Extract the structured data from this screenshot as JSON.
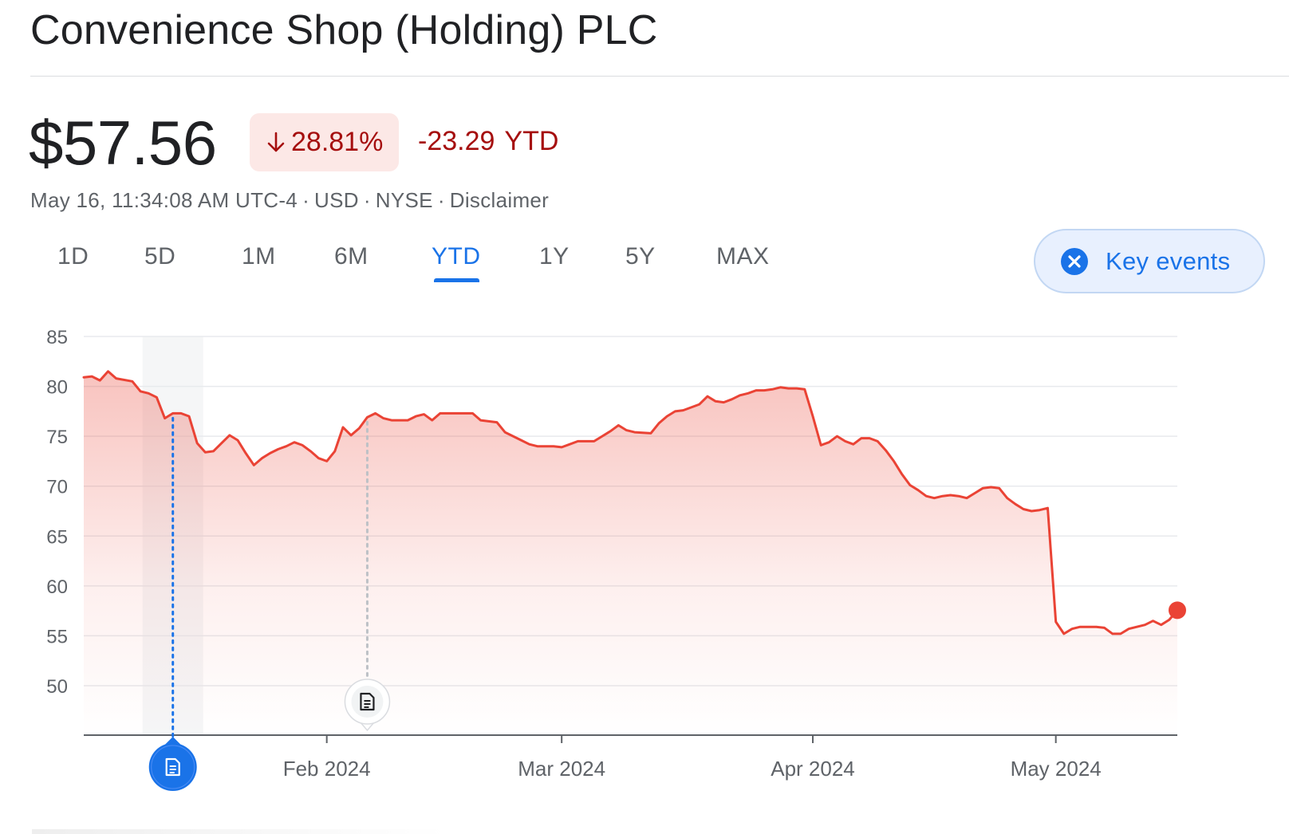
{
  "header": {
    "title": "Convenience Shop (Holding) PLC"
  },
  "quote": {
    "price": "$57.56",
    "change_percent": "28.81%",
    "change_direction_icon": "arrow-down-icon",
    "change_absolute": "-23.29",
    "change_period": "YTD",
    "timestamp": "May 16, 11:34:08 AM UTC-4",
    "currency": "USD",
    "exchange": "NYSE",
    "disclaimer": "Disclaimer",
    "colors": {
      "negative": "#a50e0e",
      "negative_bg": "#fce8e6",
      "line": "#ea4335",
      "accent": "#1a73e8"
    }
  },
  "range_tabs": {
    "items": [
      "1D",
      "5D",
      "1M",
      "6M",
      "YTD",
      "1Y",
      "5Y",
      "MAX"
    ],
    "selected": "YTD"
  },
  "key_events": {
    "label": "Key events",
    "icon": "close-circle-icon",
    "active": true
  },
  "chart_data": {
    "type": "area",
    "title": "",
    "xlabel": "",
    "ylabel": "",
    "x_start": "2024-01-02",
    "x_end": "2024-05-16",
    "x_ticks": [
      {
        "date": "2024-02-01",
        "label": "Feb 2024"
      },
      {
        "date": "2024-03-01",
        "label": "Mar 2024"
      },
      {
        "date": "2024-04-01",
        "label": "Apr 2024"
      },
      {
        "date": "2024-05-01",
        "label": "May 2024"
      }
    ],
    "y_ticks": [
      85,
      80,
      75,
      70,
      65,
      60,
      55,
      50
    ],
    "ylim": [
      45,
      85
    ],
    "grid": true,
    "series": [
      {
        "values": [
          [
            "2024-01-02",
            80.9
          ],
          [
            "2024-01-03",
            81.0
          ],
          [
            "2024-01-04",
            80.6
          ],
          [
            "2024-01-05",
            81.5
          ],
          [
            "2024-01-06",
            80.8
          ],
          [
            "2024-01-08",
            80.5
          ],
          [
            "2024-01-09",
            79.5
          ],
          [
            "2024-01-10",
            79.3
          ],
          [
            "2024-01-11",
            78.9
          ],
          [
            "2024-01-12",
            76.8
          ],
          [
            "2024-01-13",
            77.3
          ],
          [
            "2024-01-14",
            77.3
          ],
          [
            "2024-01-15",
            77.0
          ],
          [
            "2024-01-16",
            74.3
          ],
          [
            "2024-01-17",
            73.4
          ],
          [
            "2024-01-18",
            73.5
          ],
          [
            "2024-01-19",
            74.3
          ],
          [
            "2024-01-20",
            75.1
          ],
          [
            "2024-01-21",
            74.6
          ],
          [
            "2024-01-22",
            73.3
          ],
          [
            "2024-01-23",
            72.1
          ],
          [
            "2024-01-24",
            72.8
          ],
          [
            "2024-01-25",
            73.3
          ],
          [
            "2024-01-26",
            73.7
          ],
          [
            "2024-01-27",
            74.0
          ],
          [
            "2024-01-28",
            74.4
          ],
          [
            "2024-01-29",
            74.1
          ],
          [
            "2024-01-30",
            73.5
          ],
          [
            "2024-01-31",
            72.8
          ],
          [
            "2024-02-01",
            72.5
          ],
          [
            "2024-02-02",
            73.5
          ],
          [
            "2024-02-03",
            75.9
          ],
          [
            "2024-02-04",
            75.1
          ],
          [
            "2024-02-05",
            75.8
          ],
          [
            "2024-02-06",
            76.9
          ],
          [
            "2024-02-07",
            77.3
          ],
          [
            "2024-02-08",
            76.8
          ],
          [
            "2024-02-09",
            76.6
          ],
          [
            "2024-02-11",
            76.6
          ],
          [
            "2024-02-12",
            77.0
          ],
          [
            "2024-02-13",
            77.2
          ],
          [
            "2024-02-14",
            76.6
          ],
          [
            "2024-02-15",
            77.3
          ],
          [
            "2024-02-17",
            77.3
          ],
          [
            "2024-02-19",
            77.3
          ],
          [
            "2024-02-20",
            76.6
          ],
          [
            "2024-02-22",
            76.4
          ],
          [
            "2024-02-23",
            75.4
          ],
          [
            "2024-02-25",
            74.6
          ],
          [
            "2024-02-26",
            74.2
          ],
          [
            "2024-02-27",
            74.0
          ],
          [
            "2024-02-28",
            74.0
          ],
          [
            "2024-02-29",
            74.0
          ],
          [
            "2024-03-01",
            73.9
          ],
          [
            "2024-03-02",
            74.2
          ],
          [
            "2024-03-03",
            74.5
          ],
          [
            "2024-03-04",
            74.5
          ],
          [
            "2024-03-05",
            74.5
          ],
          [
            "2024-03-06",
            75.0
          ],
          [
            "2024-03-07",
            75.5
          ],
          [
            "2024-03-08",
            76.1
          ],
          [
            "2024-03-09",
            75.6
          ],
          [
            "2024-03-10",
            75.4
          ],
          [
            "2024-03-12",
            75.3
          ],
          [
            "2024-03-13",
            76.3
          ],
          [
            "2024-03-14",
            77.0
          ],
          [
            "2024-03-15",
            77.5
          ],
          [
            "2024-03-16",
            77.6
          ],
          [
            "2024-03-17",
            77.9
          ],
          [
            "2024-03-18",
            78.2
          ],
          [
            "2024-03-19",
            79.0
          ],
          [
            "2024-03-20",
            78.5
          ],
          [
            "2024-03-21",
            78.4
          ],
          [
            "2024-03-22",
            78.7
          ],
          [
            "2024-03-23",
            79.1
          ],
          [
            "2024-03-24",
            79.3
          ],
          [
            "2024-03-25",
            79.6
          ],
          [
            "2024-03-26",
            79.6
          ],
          [
            "2024-03-27",
            79.7
          ],
          [
            "2024-03-28",
            79.9
          ],
          [
            "2024-03-29",
            79.8
          ],
          [
            "2024-03-30",
            79.8
          ],
          [
            "2024-03-31",
            79.7
          ],
          [
            "2024-04-01",
            77.0
          ],
          [
            "2024-04-02",
            74.1
          ],
          [
            "2024-04-03",
            74.4
          ],
          [
            "2024-04-04",
            75.0
          ],
          [
            "2024-04-05",
            74.5
          ],
          [
            "2024-04-06",
            74.2
          ],
          [
            "2024-04-07",
            74.8
          ],
          [
            "2024-04-08",
            74.8
          ],
          [
            "2024-04-09",
            74.5
          ],
          [
            "2024-04-10",
            73.6
          ],
          [
            "2024-04-11",
            72.5
          ],
          [
            "2024-04-12",
            71.2
          ],
          [
            "2024-04-13",
            70.1
          ],
          [
            "2024-04-14",
            69.6
          ],
          [
            "2024-04-15",
            69.0
          ],
          [
            "2024-04-16",
            68.8
          ],
          [
            "2024-04-17",
            69.0
          ],
          [
            "2024-04-18",
            69.1
          ],
          [
            "2024-04-19",
            69.0
          ],
          [
            "2024-04-20",
            68.8
          ],
          [
            "2024-04-21",
            69.3
          ],
          [
            "2024-04-22",
            69.8
          ],
          [
            "2024-04-23",
            69.9
          ],
          [
            "2024-04-24",
            69.8
          ],
          [
            "2024-04-25",
            68.8
          ],
          [
            "2024-04-26",
            68.2
          ],
          [
            "2024-04-27",
            67.7
          ],
          [
            "2024-04-28",
            67.5
          ],
          [
            "2024-04-29",
            67.6
          ],
          [
            "2024-04-30",
            67.8
          ],
          [
            "2024-05-01",
            56.4
          ],
          [
            "2024-05-02",
            55.2
          ],
          [
            "2024-05-03",
            55.7
          ],
          [
            "2024-05-04",
            55.9
          ],
          [
            "2024-05-05",
            55.9
          ],
          [
            "2024-05-06",
            55.9
          ],
          [
            "2024-05-07",
            55.8
          ],
          [
            "2024-05-08",
            55.2
          ],
          [
            "2024-05-09",
            55.2
          ],
          [
            "2024-05-10",
            55.7
          ],
          [
            "2024-05-11",
            55.9
          ],
          [
            "2024-05-12",
            56.1
          ],
          [
            "2024-05-13",
            56.5
          ],
          [
            "2024-05-14",
            56.1
          ],
          [
            "2024-05-15",
            56.6
          ],
          [
            "2024-05-16",
            57.56
          ]
        ]
      }
    ],
    "events": [
      {
        "date": "2024-01-13",
        "icon": "document-icon",
        "selected": true
      },
      {
        "date": "2024-02-06",
        "icon": "document-icon",
        "selected": false
      }
    ]
  }
}
